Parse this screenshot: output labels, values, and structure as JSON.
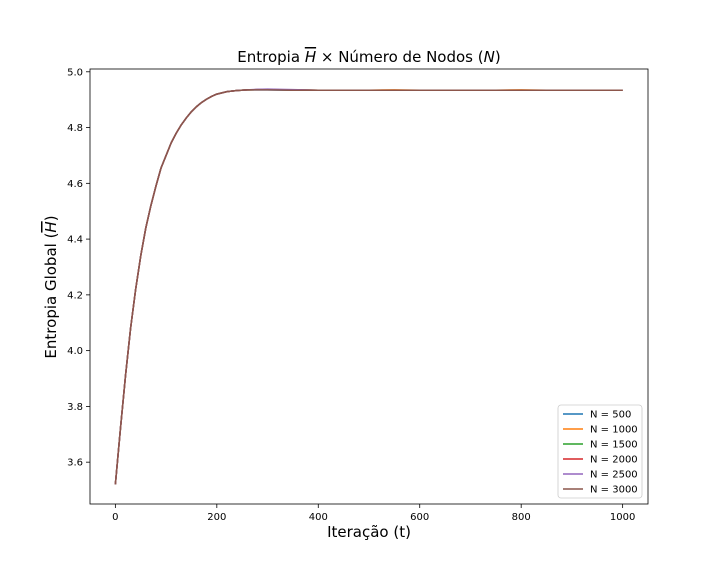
{
  "chart_data": {
    "type": "line",
    "title": "Entropia H × Número de Nodos (N)",
    "title_parts": {
      "prefix": "Entropia ",
      "symbol": "H",
      "middle": " × Número de Nodos (",
      "n": "N",
      "suffix": ")"
    },
    "xlabel": "Iteração (t)",
    "ylabel": "Entropia Global (H)",
    "ylabel_parts": {
      "prefix": "Entropia Global (",
      "symbol": "H",
      "suffix": ")"
    },
    "xlim": [
      -50,
      1050
    ],
    "ylim": [
      3.45,
      5.01
    ],
    "xticks": [
      0,
      200,
      400,
      600,
      800,
      1000
    ],
    "xtick_labels": [
      "0",
      "200",
      "400",
      "600",
      "800",
      "1000"
    ],
    "yticks": [
      3.6,
      3.8,
      4.0,
      4.2,
      4.4,
      4.6,
      4.8,
      5.0
    ],
    "ytick_labels": [
      "3.6",
      "3.8",
      "4.0",
      "4.2",
      "4.4",
      "4.6",
      "4.8",
      "5.0"
    ],
    "grid": false,
    "legend_position": "lower-right",
    "x": [
      0,
      10,
      20,
      30,
      40,
      50,
      60,
      70,
      80,
      90,
      100,
      110,
      120,
      130,
      140,
      150,
      160,
      170,
      180,
      190,
      200,
      220,
      240,
      260,
      280,
      300,
      350,
      400,
      450,
      500,
      550,
      600,
      650,
      700,
      750,
      800,
      850,
      900,
      950,
      1000
    ],
    "series": [
      {
        "name": "N = 500",
        "color": "#1f77b4",
        "values": [
          3.52,
          3.72,
          3.91,
          4.08,
          4.22,
          4.34,
          4.44,
          4.52,
          4.59,
          4.655,
          4.7,
          4.745,
          4.78,
          4.81,
          4.835,
          4.857,
          4.875,
          4.89,
          4.902,
          4.912,
          4.92,
          4.929,
          4.933,
          4.935,
          4.935,
          4.935,
          4.934,
          4.934,
          4.934,
          4.934,
          4.934,
          4.934,
          4.934,
          4.934,
          4.934,
          4.934,
          4.934,
          4.934,
          4.934,
          4.934
        ]
      },
      {
        "name": "N = 1000",
        "color": "#ff7f0e",
        "values": [
          3.52,
          3.72,
          3.91,
          4.08,
          4.22,
          4.34,
          4.44,
          4.52,
          4.59,
          4.655,
          4.7,
          4.745,
          4.78,
          4.81,
          4.835,
          4.857,
          4.875,
          4.89,
          4.902,
          4.912,
          4.92,
          4.929,
          4.933,
          4.935,
          4.936,
          4.936,
          4.935,
          4.934,
          4.934,
          4.934,
          4.935,
          4.934,
          4.934,
          4.934,
          4.934,
          4.935,
          4.934,
          4.934,
          4.934,
          4.934
        ]
      },
      {
        "name": "N = 1500",
        "color": "#2ca02c",
        "values": [
          3.52,
          3.72,
          3.91,
          4.08,
          4.22,
          4.34,
          4.44,
          4.52,
          4.59,
          4.655,
          4.7,
          4.745,
          4.78,
          4.81,
          4.835,
          4.857,
          4.875,
          4.89,
          4.902,
          4.912,
          4.92,
          4.929,
          4.933,
          4.935,
          4.936,
          4.936,
          4.935,
          4.934,
          4.934,
          4.934,
          4.934,
          4.934,
          4.934,
          4.934,
          4.934,
          4.934,
          4.934,
          4.934,
          4.934,
          4.934
        ]
      },
      {
        "name": "N = 2000",
        "color": "#d62728",
        "values": [
          3.52,
          3.72,
          3.91,
          4.08,
          4.22,
          4.34,
          4.44,
          4.52,
          4.59,
          4.655,
          4.7,
          4.745,
          4.78,
          4.81,
          4.835,
          4.857,
          4.875,
          4.89,
          4.902,
          4.912,
          4.92,
          4.929,
          4.933,
          4.935,
          4.936,
          4.936,
          4.935,
          4.934,
          4.934,
          4.934,
          4.934,
          4.934,
          4.934,
          4.934,
          4.934,
          4.934,
          4.934,
          4.934,
          4.934,
          4.934
        ]
      },
      {
        "name": "N = 2500",
        "color": "#9467bd",
        "values": [
          3.52,
          3.72,
          3.91,
          4.08,
          4.22,
          4.34,
          4.44,
          4.52,
          4.59,
          4.655,
          4.7,
          4.745,
          4.78,
          4.81,
          4.835,
          4.857,
          4.875,
          4.89,
          4.902,
          4.912,
          4.92,
          4.929,
          4.933,
          4.935,
          4.937,
          4.938,
          4.936,
          4.934,
          4.934,
          4.934,
          4.934,
          4.934,
          4.934,
          4.934,
          4.934,
          4.934,
          4.934,
          4.934,
          4.934,
          4.934
        ]
      },
      {
        "name": "N = 3000",
        "color": "#8c564b",
        "values": [
          3.52,
          3.72,
          3.91,
          4.08,
          4.22,
          4.34,
          4.44,
          4.52,
          4.59,
          4.655,
          4.7,
          4.745,
          4.78,
          4.81,
          4.835,
          4.857,
          4.875,
          4.89,
          4.902,
          4.912,
          4.92,
          4.929,
          4.933,
          4.935,
          4.935,
          4.935,
          4.934,
          4.934,
          4.934,
          4.934,
          4.934,
          4.934,
          4.934,
          4.934,
          4.934,
          4.934,
          4.934,
          4.934,
          4.934,
          4.934
        ]
      }
    ]
  }
}
